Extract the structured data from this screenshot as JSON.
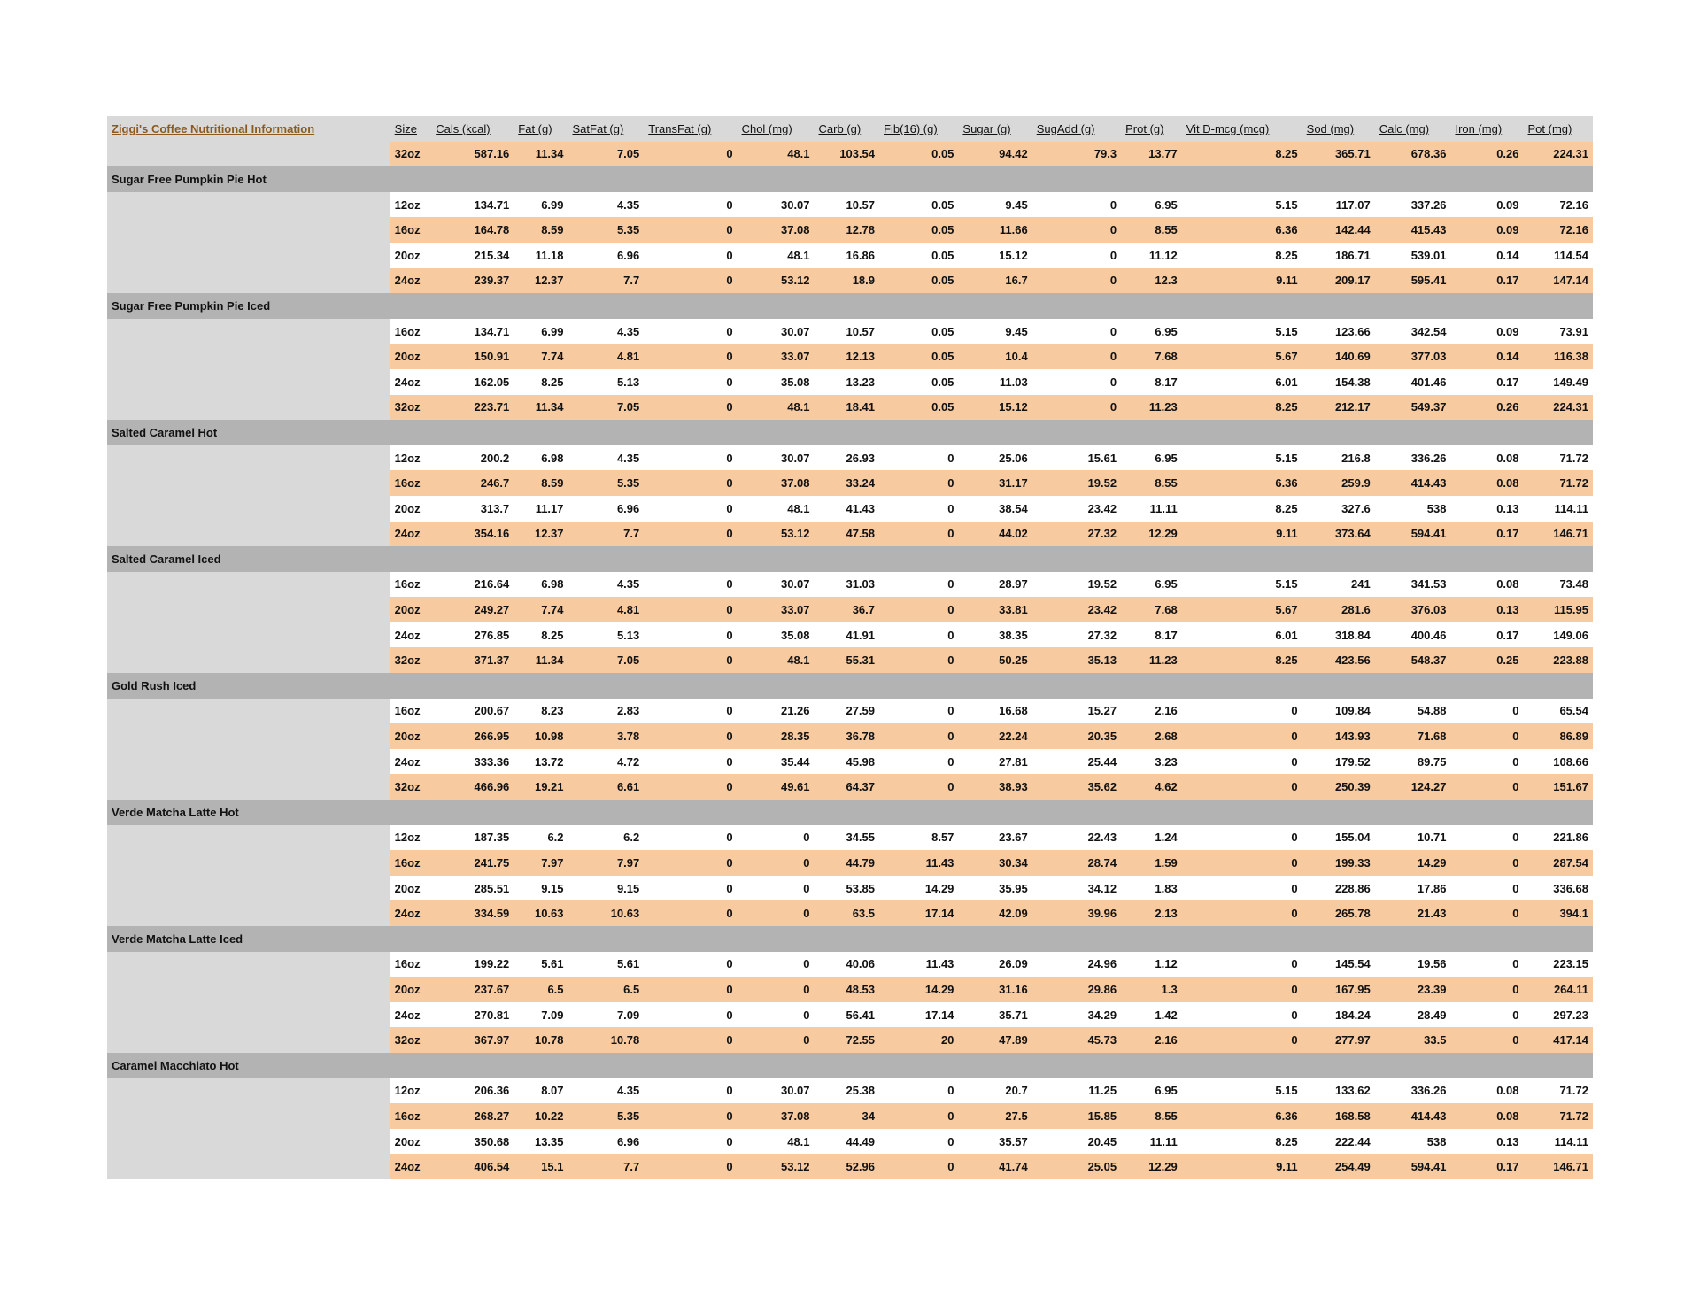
{
  "title": "Ziggi's Coffee Nutritional Information",
  "columns": [
    "Size",
    "Cals (kcal)",
    "Fat (g)",
    "SatFat (g)",
    "TransFat (g)",
    "Chol (mg)",
    "Carb (g)",
    "Fib(16) (g)",
    "Sugar (g)",
    "SugAdd (g)",
    "Prot (g)",
    "Vit D-mcg (mcg)",
    "Sod (mg)",
    "Calc (mg)",
    "Iron (mg)",
    "Pot (mg)"
  ],
  "colors": {
    "highlight_row": "#f8caa0",
    "group_row": "#b3b3b3",
    "label_column": "#d9d9d9",
    "title": "#8a5a20"
  },
  "leading_rows": [
    {
      "size": "32oz",
      "values": [
        "587.16",
        "11.34",
        "7.05",
        "0",
        "48.1",
        "103.54",
        "0.05",
        "94.42",
        "79.3",
        "13.77",
        "8.25",
        "365.71",
        "678.36",
        "0.26",
        "224.31"
      ]
    }
  ],
  "groups": [
    {
      "name": "Sugar Free Pumpkin Pie Hot",
      "rows": [
        {
          "size": "12oz",
          "values": [
            "134.71",
            "6.99",
            "4.35",
            "0",
            "30.07",
            "10.57",
            "0.05",
            "9.45",
            "0",
            "6.95",
            "5.15",
            "117.07",
            "337.26",
            "0.09",
            "72.16"
          ]
        },
        {
          "size": "16oz",
          "values": [
            "164.78",
            "8.59",
            "5.35",
            "0",
            "37.08",
            "12.78",
            "0.05",
            "11.66",
            "0",
            "8.55",
            "6.36",
            "142.44",
            "415.43",
            "0.09",
            "72.16"
          ]
        },
        {
          "size": "20oz",
          "values": [
            "215.34",
            "11.18",
            "6.96",
            "0",
            "48.1",
            "16.86",
            "0.05",
            "15.12",
            "0",
            "11.12",
            "8.25",
            "186.71",
            "539.01",
            "0.14",
            "114.54"
          ]
        },
        {
          "size": "24oz",
          "values": [
            "239.37",
            "12.37",
            "7.7",
            "0",
            "53.12",
            "18.9",
            "0.05",
            "16.7",
            "0",
            "12.3",
            "9.11",
            "209.17",
            "595.41",
            "0.17",
            "147.14"
          ]
        }
      ]
    },
    {
      "name": "Sugar Free Pumpkin Pie Iced",
      "rows": [
        {
          "size": "16oz",
          "values": [
            "134.71",
            "6.99",
            "4.35",
            "0",
            "30.07",
            "10.57",
            "0.05",
            "9.45",
            "0",
            "6.95",
            "5.15",
            "123.66",
            "342.54",
            "0.09",
            "73.91"
          ]
        },
        {
          "size": "20oz",
          "values": [
            "150.91",
            "7.74",
            "4.81",
            "0",
            "33.07",
            "12.13",
            "0.05",
            "10.4",
            "0",
            "7.68",
            "5.67",
            "140.69",
            "377.03",
            "0.14",
            "116.38"
          ]
        },
        {
          "size": "24oz",
          "values": [
            "162.05",
            "8.25",
            "5.13",
            "0",
            "35.08",
            "13.23",
            "0.05",
            "11.03",
            "0",
            "8.17",
            "6.01",
            "154.38",
            "401.46",
            "0.17",
            "149.49"
          ]
        },
        {
          "size": "32oz",
          "values": [
            "223.71",
            "11.34",
            "7.05",
            "0",
            "48.1",
            "18.41",
            "0.05",
            "15.12",
            "0",
            "11.23",
            "8.25",
            "212.17",
            "549.37",
            "0.26",
            "224.31"
          ]
        }
      ]
    },
    {
      "name": "Salted Caramel Hot",
      "rows": [
        {
          "size": "12oz",
          "values": [
            "200.2",
            "6.98",
            "4.35",
            "0",
            "30.07",
            "26.93",
            "0",
            "25.06",
            "15.61",
            "6.95",
            "5.15",
            "216.8",
            "336.26",
            "0.08",
            "71.72"
          ]
        },
        {
          "size": "16oz",
          "values": [
            "246.7",
            "8.59",
            "5.35",
            "0",
            "37.08",
            "33.24",
            "0",
            "31.17",
            "19.52",
            "8.55",
            "6.36",
            "259.9",
            "414.43",
            "0.08",
            "71.72"
          ]
        },
        {
          "size": "20oz",
          "values": [
            "313.7",
            "11.17",
            "6.96",
            "0",
            "48.1",
            "41.43",
            "0",
            "38.54",
            "23.42",
            "11.11",
            "8.25",
            "327.6",
            "538",
            "0.13",
            "114.11"
          ]
        },
        {
          "size": "24oz",
          "values": [
            "354.16",
            "12.37",
            "7.7",
            "0",
            "53.12",
            "47.58",
            "0",
            "44.02",
            "27.32",
            "12.29",
            "9.11",
            "373.64",
            "594.41",
            "0.17",
            "146.71"
          ]
        }
      ]
    },
    {
      "name": "Salted Caramel Iced",
      "rows": [
        {
          "size": "16oz",
          "values": [
            "216.64",
            "6.98",
            "4.35",
            "0",
            "30.07",
            "31.03",
            "0",
            "28.97",
            "19.52",
            "6.95",
            "5.15",
            "241",
            "341.53",
            "0.08",
            "73.48"
          ]
        },
        {
          "size": "20oz",
          "values": [
            "249.27",
            "7.74",
            "4.81",
            "0",
            "33.07",
            "36.7",
            "0",
            "33.81",
            "23.42",
            "7.68",
            "5.67",
            "281.6",
            "376.03",
            "0.13",
            "115.95"
          ]
        },
        {
          "size": "24oz",
          "values": [
            "276.85",
            "8.25",
            "5.13",
            "0",
            "35.08",
            "41.91",
            "0",
            "38.35",
            "27.32",
            "8.17",
            "6.01",
            "318.84",
            "400.46",
            "0.17",
            "149.06"
          ]
        },
        {
          "size": "32oz",
          "values": [
            "371.37",
            "11.34",
            "7.05",
            "0",
            "48.1",
            "55.31",
            "0",
            "50.25",
            "35.13",
            "11.23",
            "8.25",
            "423.56",
            "548.37",
            "0.25",
            "223.88"
          ]
        }
      ]
    },
    {
      "name": "Gold Rush Iced",
      "rows": [
        {
          "size": "16oz",
          "values": [
            "200.67",
            "8.23",
            "2.83",
            "0",
            "21.26",
            "27.59",
            "0",
            "16.68",
            "15.27",
            "2.16",
            "0",
            "109.84",
            "54.88",
            "0",
            "65.54"
          ]
        },
        {
          "size": "20oz",
          "values": [
            "266.95",
            "10.98",
            "3.78",
            "0",
            "28.35",
            "36.78",
            "0",
            "22.24",
            "20.35",
            "2.68",
            "0",
            "143.93",
            "71.68",
            "0",
            "86.89"
          ]
        },
        {
          "size": "24oz",
          "values": [
            "333.36",
            "13.72",
            "4.72",
            "0",
            "35.44",
            "45.98",
            "0",
            "27.81",
            "25.44",
            "3.23",
            "0",
            "179.52",
            "89.75",
            "0",
            "108.66"
          ]
        },
        {
          "size": "32oz",
          "values": [
            "466.96",
            "19.21",
            "6.61",
            "0",
            "49.61",
            "64.37",
            "0",
            "38.93",
            "35.62",
            "4.62",
            "0",
            "250.39",
            "124.27",
            "0",
            "151.67"
          ]
        }
      ]
    },
    {
      "name": "Verde Matcha Latte Hot",
      "rows": [
        {
          "size": "12oz",
          "values": [
            "187.35",
            "6.2",
            "6.2",
            "0",
            "0",
            "34.55",
            "8.57",
            "23.67",
            "22.43",
            "1.24",
            "0",
            "155.04",
            "10.71",
            "0",
            "221.86"
          ]
        },
        {
          "size": "16oz",
          "values": [
            "241.75",
            "7.97",
            "7.97",
            "0",
            "0",
            "44.79",
            "11.43",
            "30.34",
            "28.74",
            "1.59",
            "0",
            "199.33",
            "14.29",
            "0",
            "287.54"
          ]
        },
        {
          "size": "20oz",
          "values": [
            "285.51",
            "9.15",
            "9.15",
            "0",
            "0",
            "53.85",
            "14.29",
            "35.95",
            "34.12",
            "1.83",
            "0",
            "228.86",
            "17.86",
            "0",
            "336.68"
          ]
        },
        {
          "size": "24oz",
          "values": [
            "334.59",
            "10.63",
            "10.63",
            "0",
            "0",
            "63.5",
            "17.14",
            "42.09",
            "39.96",
            "2.13",
            "0",
            "265.78",
            "21.43",
            "0",
            "394.1"
          ]
        }
      ]
    },
    {
      "name": "Verde Matcha Latte Iced",
      "rows": [
        {
          "size": "16oz",
          "values": [
            "199.22",
            "5.61",
            "5.61",
            "0",
            "0",
            "40.06",
            "11.43",
            "26.09",
            "24.96",
            "1.12",
            "0",
            "145.54",
            "19.56",
            "0",
            "223.15"
          ]
        },
        {
          "size": "20oz",
          "values": [
            "237.67",
            "6.5",
            "6.5",
            "0",
            "0",
            "48.53",
            "14.29",
            "31.16",
            "29.86",
            "1.3",
            "0",
            "167.95",
            "23.39",
            "0",
            "264.11"
          ]
        },
        {
          "size": "24oz",
          "values": [
            "270.81",
            "7.09",
            "7.09",
            "0",
            "0",
            "56.41",
            "17.14",
            "35.71",
            "34.29",
            "1.42",
            "0",
            "184.24",
            "28.49",
            "0",
            "297.23"
          ]
        },
        {
          "size": "32oz",
          "values": [
            "367.97",
            "10.78",
            "10.78",
            "0",
            "0",
            "72.55",
            "20",
            "47.89",
            "45.73",
            "2.16",
            "0",
            "277.97",
            "33.5",
            "0",
            "417.14"
          ]
        }
      ]
    },
    {
      "name": "Caramel Macchiato Hot",
      "rows": [
        {
          "size": "12oz",
          "values": [
            "206.36",
            "8.07",
            "4.35",
            "0",
            "30.07",
            "25.38",
            "0",
            "20.7",
            "11.25",
            "6.95",
            "5.15",
            "133.62",
            "336.26",
            "0.08",
            "71.72"
          ]
        },
        {
          "size": "16oz",
          "values": [
            "268.27",
            "10.22",
            "5.35",
            "0",
            "37.08",
            "34",
            "0",
            "27.5",
            "15.85",
            "8.55",
            "6.36",
            "168.58",
            "414.43",
            "0.08",
            "71.72"
          ]
        },
        {
          "size": "20oz",
          "values": [
            "350.68",
            "13.35",
            "6.96",
            "0",
            "48.1",
            "44.49",
            "0",
            "35.57",
            "20.45",
            "11.11",
            "8.25",
            "222.44",
            "538",
            "0.13",
            "114.11"
          ]
        },
        {
          "size": "24oz",
          "values": [
            "406.54",
            "15.1",
            "7.7",
            "0",
            "53.12",
            "52.96",
            "0",
            "41.74",
            "25.05",
            "12.29",
            "9.11",
            "254.49",
            "594.41",
            "0.17",
            "146.71"
          ]
        }
      ]
    }
  ]
}
